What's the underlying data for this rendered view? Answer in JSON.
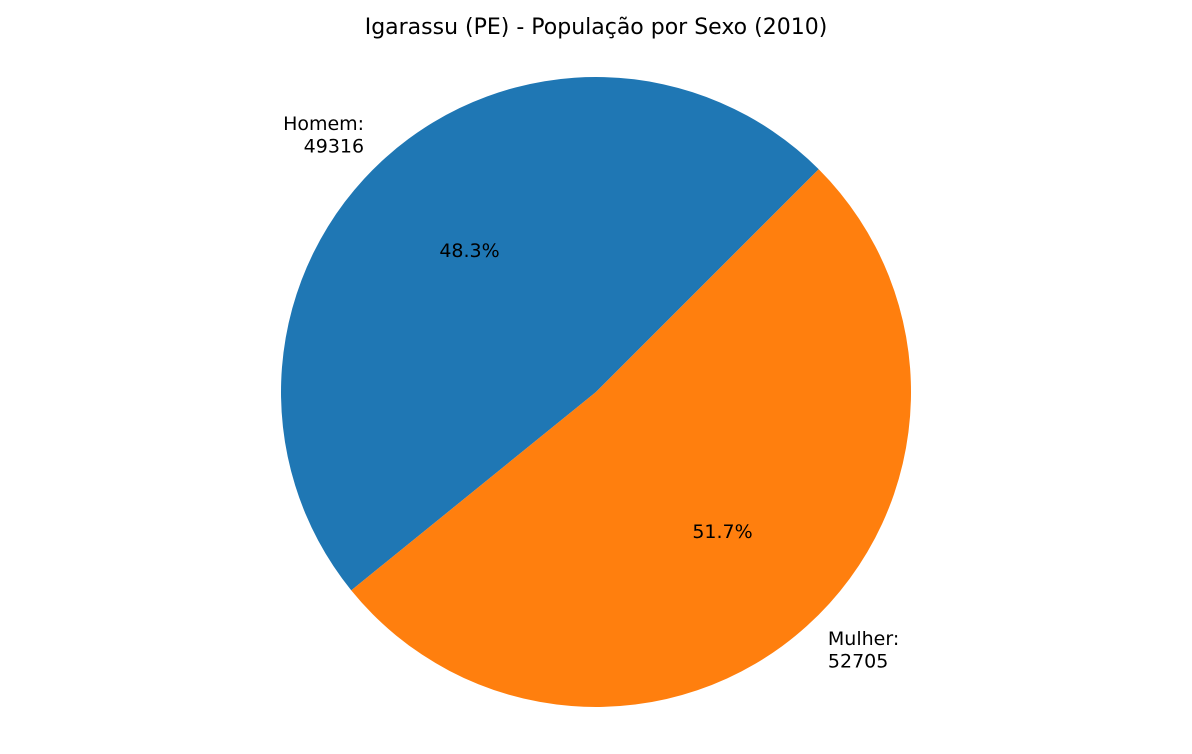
{
  "chart_data": {
    "type": "pie",
    "title": "Igarassu (PE) - População por Sexo (2010)",
    "slices": [
      {
        "name": "Homem",
        "value": 49316,
        "label_lines": [
          "Homem:",
          "49316"
        ],
        "percent_label": "48.3%",
        "color": "#1f77b4"
      },
      {
        "name": "Mulher",
        "value": 52705,
        "label_lines": [
          "Mulher:",
          "52705"
        ],
        "percent_label": "51.7%",
        "color": "#ff7f0e"
      }
    ],
    "start_angle_deg": 45,
    "direction": "counterclockwise",
    "legend": "none"
  }
}
